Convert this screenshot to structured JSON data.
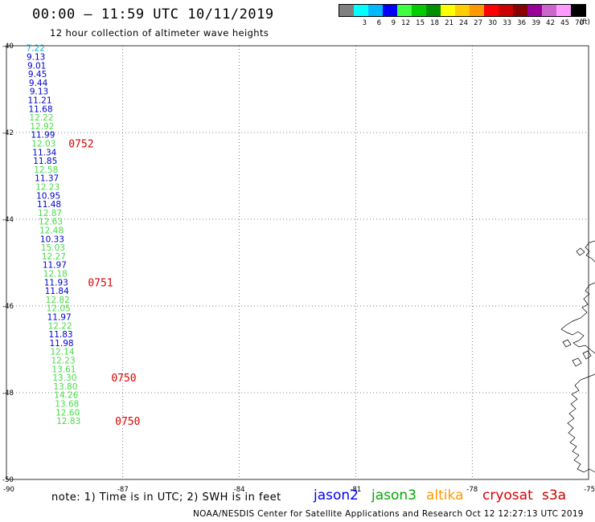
{
  "header": {
    "title": "00:00 – 11:59 UTC 10/11/2019",
    "subtitle": "12 hour collection of altimeter wave heights"
  },
  "colorbar": {
    "unit": "(ft)",
    "swatch_colors": [
      "#808080",
      "#00ffff",
      "#00b8ff",
      "#0000ff",
      "#40ff40",
      "#00cc00",
      "#009000",
      "#ffff00",
      "#ffcc00",
      "#ff9900",
      "#ff0000",
      "#cc0000",
      "#880000",
      "#990099",
      "#cc66cc",
      "#ff99ff",
      "#000000"
    ],
    "labels": [
      "",
      "3",
      "6",
      "9",
      "12",
      "15",
      "18",
      "21",
      "24",
      "27",
      "30",
      "33",
      "36",
      "39",
      "42",
      "45",
      "70"
    ]
  },
  "chart_data": {
    "type": "scatter",
    "title": "00:00 – 11:59 UTC 10/11/2019",
    "subtitle": "12 hour collection of altimeter wave heights",
    "xlim": [
      -90,
      -75
    ],
    "ylim": [
      -50,
      -40
    ],
    "x_ticks": [
      "-90",
      "-87",
      "-84",
      "-81",
      "-78",
      "-75"
    ],
    "y_ticks": [
      "-40",
      "-42",
      "-44",
      "-46",
      "-48",
      "-50"
    ],
    "point_colors": {
      "jason2": "#0000cc",
      "jason3": "#44dd44",
      "cyan": "#00b0c0"
    },
    "points": [
      {
        "lon": -89.25,
        "lat": -40.05,
        "value": "7.22",
        "sat": "cyan"
      },
      {
        "lon": -89.24,
        "lat": -40.25,
        "value": "9.13",
        "sat": "jason2"
      },
      {
        "lon": -89.22,
        "lat": -40.45,
        "value": "9.01",
        "sat": "jason2"
      },
      {
        "lon": -89.2,
        "lat": -40.65,
        "value": "9.45",
        "sat": "jason2"
      },
      {
        "lon": -89.18,
        "lat": -40.85,
        "value": "9.44",
        "sat": "jason2"
      },
      {
        "lon": -89.16,
        "lat": -41.05,
        "value": "9.13",
        "sat": "jason2"
      },
      {
        "lon": -89.14,
        "lat": -41.25,
        "value": "11.21",
        "sat": "jason2"
      },
      {
        "lon": -89.12,
        "lat": -41.45,
        "value": "11.68",
        "sat": "jason2"
      },
      {
        "lon": -89.1,
        "lat": -41.65,
        "value": "12.22",
        "sat": "jason3"
      },
      {
        "lon": -89.08,
        "lat": -41.85,
        "value": "12.92",
        "sat": "jason3"
      },
      {
        "lon": -89.06,
        "lat": -42.05,
        "value": "11.99",
        "sat": "jason2"
      },
      {
        "lon": -89.04,
        "lat": -42.25,
        "value": "12.03",
        "sat": "jason3"
      },
      {
        "lon": -89.02,
        "lat": -42.45,
        "value": "11.34",
        "sat": "jason2"
      },
      {
        "lon": -89.0,
        "lat": -42.65,
        "value": "11.85",
        "sat": "jason2"
      },
      {
        "lon": -88.98,
        "lat": -42.85,
        "value": "12.58",
        "sat": "jason3"
      },
      {
        "lon": -88.96,
        "lat": -43.05,
        "value": "11.37",
        "sat": "jason2"
      },
      {
        "lon": -88.94,
        "lat": -43.25,
        "value": "12.23",
        "sat": "jason3"
      },
      {
        "lon": -88.92,
        "lat": -43.45,
        "value": "10.95",
        "sat": "jason2"
      },
      {
        "lon": -88.9,
        "lat": -43.65,
        "value": "11.48",
        "sat": "jason2"
      },
      {
        "lon": -88.88,
        "lat": -43.85,
        "value": "12.87",
        "sat": "jason3"
      },
      {
        "lon": -88.86,
        "lat": -44.05,
        "value": "12.63",
        "sat": "jason3"
      },
      {
        "lon": -88.84,
        "lat": -44.25,
        "value": "12.48",
        "sat": "jason3"
      },
      {
        "lon": -88.82,
        "lat": -44.45,
        "value": "10.33",
        "sat": "jason2"
      },
      {
        "lon": -88.8,
        "lat": -44.65,
        "value": "15.03",
        "sat": "jason3"
      },
      {
        "lon": -88.78,
        "lat": -44.85,
        "value": "12.27",
        "sat": "jason3"
      },
      {
        "lon": -88.76,
        "lat": -45.05,
        "value": "11.97",
        "sat": "jason2"
      },
      {
        "lon": -88.74,
        "lat": -45.25,
        "value": "12.18",
        "sat": "jason3"
      },
      {
        "lon": -88.72,
        "lat": -45.45,
        "value": "11.93",
        "sat": "jason2"
      },
      {
        "lon": -88.7,
        "lat": -45.65,
        "value": "11.84",
        "sat": "jason2"
      },
      {
        "lon": -88.68,
        "lat": -45.85,
        "value": "12.82",
        "sat": "jason3"
      },
      {
        "lon": -88.66,
        "lat": -46.05,
        "value": "12.05",
        "sat": "jason3"
      },
      {
        "lon": -88.64,
        "lat": -46.25,
        "value": "11.97",
        "sat": "jason2"
      },
      {
        "lon": -88.62,
        "lat": -46.45,
        "value": "12.22",
        "sat": "jason3"
      },
      {
        "lon": -88.6,
        "lat": -46.65,
        "value": "11.83",
        "sat": "jason2"
      },
      {
        "lon": -88.58,
        "lat": -46.85,
        "value": "11.98",
        "sat": "jason2"
      },
      {
        "lon": -88.56,
        "lat": -47.05,
        "value": "12.14",
        "sat": "jason3"
      },
      {
        "lon": -88.54,
        "lat": -47.25,
        "value": "12.23",
        "sat": "jason3"
      },
      {
        "lon": -88.52,
        "lat": -47.45,
        "value": "13.61",
        "sat": "jason3"
      },
      {
        "lon": -88.5,
        "lat": -47.65,
        "value": "13.30",
        "sat": "jason3"
      },
      {
        "lon": -88.48,
        "lat": -47.85,
        "value": "13.80",
        "sat": "jason3"
      },
      {
        "lon": -88.46,
        "lat": -48.05,
        "value": "14.26",
        "sat": "jason3"
      },
      {
        "lon": -88.44,
        "lat": -48.25,
        "value": "13.68",
        "sat": "jason3"
      },
      {
        "lon": -88.42,
        "lat": -48.45,
        "value": "12.60",
        "sat": "jason3"
      },
      {
        "lon": -88.4,
        "lat": -48.65,
        "value": "12.83",
        "sat": "jason3"
      }
    ],
    "time_labels": [
      {
        "lon": -88.4,
        "lat": -42.25,
        "text": "0752"
      },
      {
        "lon": -87.9,
        "lat": -45.45,
        "text": "0751"
      },
      {
        "lon": -87.3,
        "lat": -47.65,
        "text": "0750"
      },
      {
        "lon": -87.2,
        "lat": -48.65,
        "text": "0750"
      }
    ],
    "time_label_color": "#dd0000"
  },
  "note": "note:  1) Time is in UTC;  2) SWH is in feet",
  "legend": [
    {
      "name": "jason2",
      "color": "#0000ff"
    },
    {
      "name": "jason3",
      "color": "#00aa00"
    },
    {
      "name": "altika",
      "color": "#ff9900"
    },
    {
      "name": "cryosat",
      "color": "#dd0000"
    },
    {
      "name": "s3a",
      "color": "#cc0000"
    }
  ],
  "footer": "NOAA/NESDIS Center for Satellite Applications and Research     Oct 12 12:27:13 UTC 2019"
}
